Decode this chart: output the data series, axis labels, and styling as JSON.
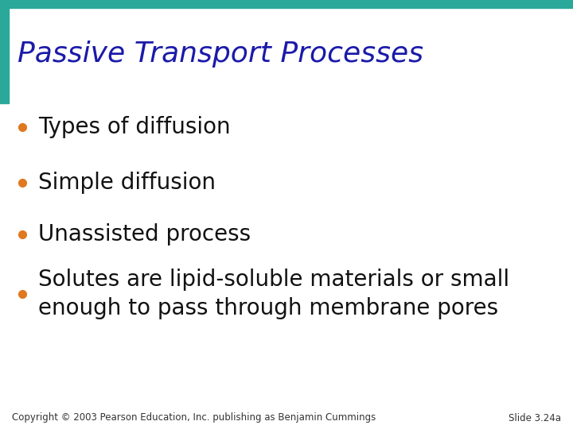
{
  "title": "Passive Transport Processes",
  "title_color": "#1a1aaa",
  "title_fontsize": 26,
  "title_bold": false,
  "teal_color": "#2aa89a",
  "background_color": "#ffffff",
  "bullet_color": "#e07820",
  "bullet_text_color": "#111111",
  "bullet_fontsize": 20,
  "bullets": [
    "Types of diffusion",
    "Simple diffusion",
    "Unassisted process",
    "Solutes are lipid-soluble materials or small\nenough to pass through membrane pores"
  ],
  "footer_left": "Copyright © 2003 Pearson Education, Inc. publishing as Benjamin Cummings",
  "footer_right": "Slide 3.24a",
  "footer_fontsize": 8.5,
  "footer_color": "#333333"
}
